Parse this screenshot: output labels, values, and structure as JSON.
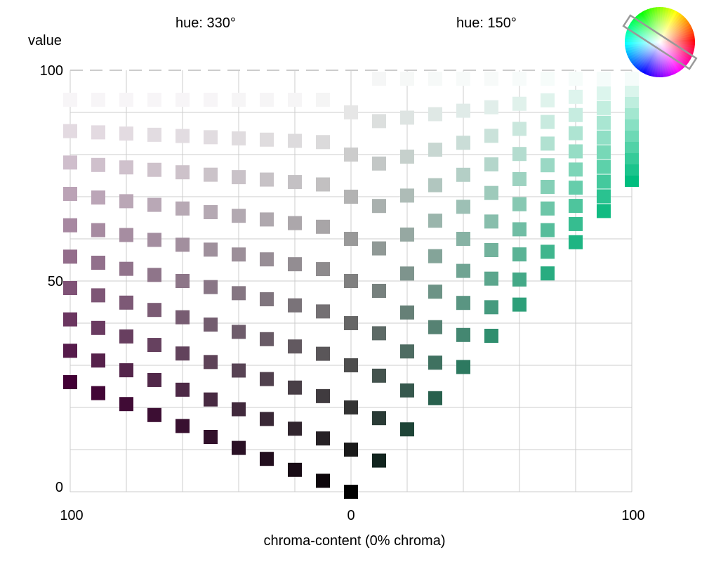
{
  "chart_data": {
    "type": "scatter",
    "ylabel": "value",
    "xlabel": "chroma-content (0% chroma)",
    "hue_left_label": "hue: 330°",
    "hue_right_label": "hue: 150°",
    "hue_left": 330,
    "hue_right": 150,
    "x_tick_labels": [
      "100",
      "0",
      "100"
    ],
    "y_tick_labels": [
      "100",
      "50",
      "0"
    ],
    "x_range": [
      -100,
      100
    ],
    "y_range": [
      0,
      100
    ],
    "grid": true,
    "legend": "color-wheel icon top-right",
    "grid_line_color": "#cccccc",
    "left_series": {
      "name": "hue 330",
      "base_color": "#ff00cc",
      "chroma_columns": [
        100,
        90,
        80,
        70,
        60,
        50,
        40,
        30,
        20,
        10
      ],
      "peak_value": 26,
      "value_steps": 10,
      "value_top": 93
    },
    "center_series": {
      "name": "gray",
      "values": [
        0,
        10,
        20,
        30,
        40,
        50,
        60,
        70,
        80,
        90
      ]
    },
    "right_series": {
      "name": "hue 150",
      "base_color": "#00ffaa",
      "chroma_columns": [
        10,
        20,
        30,
        40,
        50,
        60,
        70,
        80,
        90,
        100
      ],
      "peak_value": 74,
      "value_steps": 10,
      "value_top": 98
    }
  }
}
